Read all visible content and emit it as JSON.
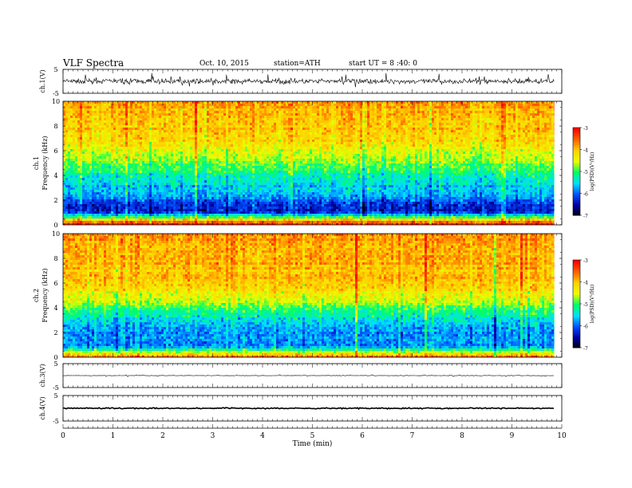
{
  "header": {
    "title": "VLF Spectra",
    "date": "Oct. 10, 2015",
    "station": "station=ATH",
    "start": "start UT =  8 :40: 0"
  },
  "colors": {
    "spectrogram_scale": [
      "#000000",
      "#0000a0",
      "#0050ff",
      "#00e0ff",
      "#00ff60",
      "#e8ff00",
      "#ffd000",
      "#ff6000",
      "#ff0000",
      "#ffffff"
    ],
    "trace": "#000000"
  },
  "chart_data": [
    {
      "type": "line",
      "title": "",
      "ylabel": "ch.1(V)",
      "ylim": [
        -5,
        5
      ],
      "yticks": [
        "5",
        "-5"
      ],
      "xlim": [
        0,
        10
      ],
      "x_extent_data": [
        0,
        9.85
      ],
      "trace": {
        "mean": 0.0,
        "noise_amplitude": 1.5,
        "spike_amplitude": 3.0
      }
    },
    {
      "type": "heatmap",
      "ylabel": "ch.1 Frequency (kHz)",
      "ylim": [
        0,
        10
      ],
      "yticks": [
        "0",
        "2",
        "4",
        "6",
        "8",
        "10"
      ],
      "xlim": [
        0,
        10
      ],
      "x_extent_data": [
        0,
        9.85
      ],
      "colorbar": {
        "label": "log(PSD)(V²/Hz)",
        "range": [
          -7,
          -3
        ],
        "ticks": [
          "-3",
          "-4",
          "-5",
          "-6",
          "-7"
        ]
      },
      "freq_profile_logpsd": [
        {
          "f_khz": 0.0,
          "value": -3.2
        },
        {
          "f_khz": 0.3,
          "value": -3.4
        },
        {
          "f_khz": 0.8,
          "value": -5.2
        },
        {
          "f_khz": 1.2,
          "value": -6.4
        },
        {
          "f_khz": 1.8,
          "value": -6.2
        },
        {
          "f_khz": 2.5,
          "value": -5.6
        },
        {
          "f_khz": 3.5,
          "value": -5.4
        },
        {
          "f_khz": 4.5,
          "value": -5.0
        },
        {
          "f_khz": 5.5,
          "value": -4.6
        },
        {
          "f_khz": 7.0,
          "value": -4.1
        },
        {
          "f_khz": 10.0,
          "value": -3.8
        }
      ]
    },
    {
      "type": "heatmap",
      "ylabel": "ch.2 Frequency (kHz)",
      "ylim": [
        0,
        10
      ],
      "yticks": [
        "0",
        "2",
        "4",
        "6",
        "8",
        "10"
      ],
      "xlim": [
        0,
        10
      ],
      "x_extent_data": [
        0,
        9.85
      ],
      "colorbar": {
        "label": "log(PSD)(V²/Hz)",
        "range": [
          -7,
          -3
        ],
        "ticks": [
          "-3",
          "-4",
          "-5",
          "-6",
          "-7"
        ]
      },
      "freq_profile_logpsd": [
        {
          "f_khz": 0.0,
          "value": -3.3
        },
        {
          "f_khz": 0.4,
          "value": -4.2
        },
        {
          "f_khz": 0.9,
          "value": -5.6
        },
        {
          "f_khz": 1.5,
          "value": -5.8
        },
        {
          "f_khz": 2.5,
          "value": -5.7
        },
        {
          "f_khz": 3.5,
          "value": -5.3
        },
        {
          "f_khz": 4.5,
          "value": -4.6
        },
        {
          "f_khz": 6.0,
          "value": -4.0
        },
        {
          "f_khz": 10.0,
          "value": -3.7
        }
      ]
    },
    {
      "type": "line",
      "ylabel": "ch.3(V)",
      "ylim": [
        -5,
        5
      ],
      "yticks": [
        "5",
        "-5"
      ],
      "xlim": [
        0,
        10
      ],
      "x_extent_data": [
        0,
        9.85
      ],
      "trace": {
        "mean": 0.0,
        "noise_amplitude": 0.15,
        "spike_amplitude": 0.4
      }
    },
    {
      "type": "line",
      "ylabel": "ch.4(V)",
      "ylim": [
        -5,
        5
      ],
      "yticks": [
        "5",
        "-5"
      ],
      "xlim": [
        0,
        10
      ],
      "x_extent_data": [
        0,
        9.85
      ],
      "trace": {
        "mean": 0.0,
        "noise_amplitude": 0.35,
        "spike_amplitude": 0.0
      }
    }
  ],
  "xaxis": {
    "label": "Time (min)",
    "ticks": [
      "0",
      "1",
      "2",
      "3",
      "4",
      "5",
      "6",
      "7",
      "8",
      "9",
      "10"
    ],
    "range": [
      0,
      10
    ]
  }
}
